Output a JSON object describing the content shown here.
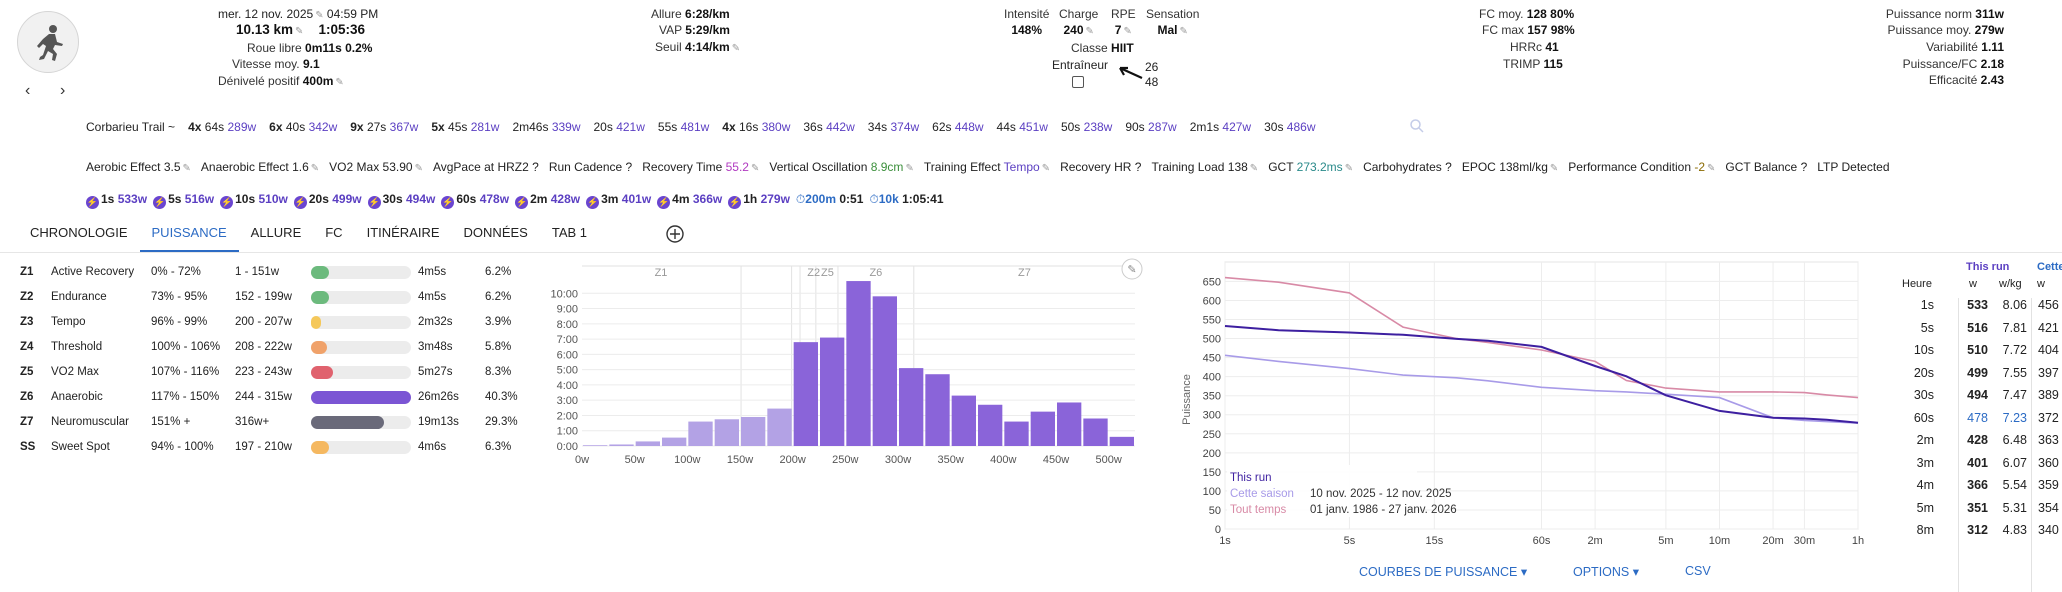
{
  "header": {
    "date": "mer. 12 nov. 2025",
    "time": "04:59 PM",
    "distance": "10.13 km",
    "duration": "1:05:36",
    "roue_libre_label": "Roue libre",
    "roue_libre": "0m11s 0.2%",
    "vitesse_label": "Vitesse moy.",
    "vitesse": "9.1",
    "denivele_label": "Dénivelé positif",
    "denivele": "400m",
    "allure_label": "Allure",
    "allure": "6:28/km",
    "vap_label": "VAP",
    "vap": "5:29/km",
    "seuil_label": "Seuil",
    "seuil": "4:14/km",
    "intensite_label": "Intensité",
    "intensite": "148%",
    "charge_label": "Charge",
    "charge": "240",
    "rpe_label": "RPE",
    "rpe": "7",
    "sensation_label": "Sensation",
    "sensation": "Mal",
    "classe_label": "Classe",
    "classe": "HIIT",
    "entraineur_label": "Entraîneur",
    "arrow_top": "26",
    "arrow_bottom": "48",
    "fcmoy_label": "FC moy.",
    "fcmoy": "128 80%",
    "fcmax_label": "FC max",
    "fcmax": "157 98%",
    "hrrc_label": "HRRc",
    "hrrc": "41",
    "trimp_label": "TRIMP",
    "trimp": "115",
    "pnorm_label": "Puissance norm",
    "pnorm": "311w",
    "pmoy_label": "Puissance moy.",
    "pmoy": "279w",
    "variab_label": "Variabilité",
    "variab": "1.11",
    "pfc_label": "Puissance/FC",
    "pfc": "2.18",
    "effic_label": "Efficacité",
    "effic": "2.43",
    "nav_prev": "‹",
    "nav_next": "›"
  },
  "intervals": [
    {
      "a": "Corbarieu Trail",
      "b": "~"
    },
    {
      "a": "4x",
      "b": "64s",
      "w": "289w"
    },
    {
      "a": "6x",
      "b": "40s",
      "w": "342w"
    },
    {
      "a": "9x",
      "b": "27s",
      "w": "367w"
    },
    {
      "a": "5x",
      "b": "45s",
      "w": "281w"
    },
    {
      "a": "",
      "b": "2m46s",
      "w": "339w"
    },
    {
      "a": "",
      "b": "20s",
      "w": "421w"
    },
    {
      "a": "",
      "b": "55s",
      "w": "481w"
    },
    {
      "a": "4x",
      "b": "16s",
      "w": "380w"
    },
    {
      "a": "",
      "b": "36s",
      "w": "442w"
    },
    {
      "a": "",
      "b": "34s",
      "w": "374w"
    },
    {
      "a": "",
      "b": "62s",
      "w": "448w"
    },
    {
      "a": "",
      "b": "44s",
      "w": "451w"
    },
    {
      "a": "",
      "b": "50s",
      "w": "238w"
    },
    {
      "a": "",
      "b": "90s",
      "w": "287w"
    },
    {
      "a": "",
      "b": "2m1s",
      "w": "427w"
    },
    {
      "a": "",
      "b": "30s",
      "w": "486w"
    }
  ],
  "metrics": [
    {
      "l": "Aerobic Effect",
      "v": "3.5"
    },
    {
      "l": "Anaerobic Effect",
      "v": "1.6"
    },
    {
      "l": "VO2 Max",
      "v": "53.90"
    },
    {
      "l": "AvgPace at HRZ2",
      "v": "?"
    },
    {
      "l": "Run Cadence",
      "v": "?"
    },
    {
      "l": "Recovery Time",
      "v": "55.2"
    },
    {
      "l": "Vertical Oscillation",
      "v": "8.9cm"
    },
    {
      "l": "Training Effect",
      "v": "Tempo"
    },
    {
      "l": "Recovery HR",
      "v": "?"
    },
    {
      "l": "Training Load",
      "v": "138"
    },
    {
      "l": "GCT",
      "v": "273.2ms"
    },
    {
      "l": "Carbohydrates",
      "v": "?"
    },
    {
      "l": "EPOC",
      "v": "138ml/kg"
    },
    {
      "l": "Performance Condition",
      "v": "-2"
    },
    {
      "l": "GCT Balance",
      "v": "?"
    },
    {
      "l": "LTP Detected",
      "v": ""
    }
  ],
  "bests": [
    {
      "d": "1s",
      "w": "533w"
    },
    {
      "d": "5s",
      "w": "516w"
    },
    {
      "d": "10s",
      "w": "510w"
    },
    {
      "d": "20s",
      "w": "499w"
    },
    {
      "d": "30s",
      "w": "494w"
    },
    {
      "d": "60s",
      "w": "478w"
    },
    {
      "d": "2m",
      "w": "428w"
    },
    {
      "d": "3m",
      "w": "401w"
    },
    {
      "d": "4m",
      "w": "366w"
    },
    {
      "d": "1h",
      "w": "279w"
    }
  ],
  "bests_time": [
    {
      "d": "200m",
      "t": "0:51"
    },
    {
      "d": "10k",
      "t": "1:05:41"
    }
  ],
  "tabs": [
    "CHRONOLOGIE",
    "PUISSANCE",
    "ALLURE",
    "FC",
    "ITINÉRAIRE",
    "DONNÉES",
    "TAB 1"
  ],
  "zones": [
    {
      "z": "Z1",
      "name": "Active Recovery",
      "pct": "0% - 72%",
      "w": "1 - 151w",
      "time": "4m5s",
      "share": "6.2%",
      "frac": 0.18,
      "color": "#6cba7d"
    },
    {
      "z": "Z2",
      "name": "Endurance",
      "pct": "73% - 95%",
      "w": "152 - 199w",
      "time": "4m5s",
      "share": "6.2%",
      "frac": 0.18,
      "color": "#6cba7d"
    },
    {
      "z": "Z3",
      "name": "Tempo",
      "pct": "96% - 99%",
      "w": "200 - 207w",
      "time": "2m32s",
      "share": "3.9%",
      "frac": 0.1,
      "color": "#f5c85a"
    },
    {
      "z": "Z4",
      "name": "Threshold",
      "pct": "100% - 106%",
      "w": "208 - 222w",
      "time": "3m48s",
      "share": "5.8%",
      "frac": 0.16,
      "color": "#f0a26a"
    },
    {
      "z": "Z5",
      "name": "VO2 Max",
      "pct": "107% - 116%",
      "w": "223 - 243w",
      "time": "5m27s",
      "share": "8.3%",
      "frac": 0.22,
      "color": "#e0626e"
    },
    {
      "z": "Z6",
      "name": "Anaerobic",
      "pct": "117% - 150%",
      "w": "244 - 315w",
      "time": "26m26s",
      "share": "40.3%",
      "frac": 1.0,
      "color": "#7b55d4"
    },
    {
      "z": "Z7",
      "name": "Neuromuscular",
      "pct": "151% +",
      "w": "316w+",
      "time": "19m13s",
      "share": "29.3%",
      "frac": 0.73,
      "color": "#6a6a7a"
    },
    {
      "z": "SS",
      "name": "Sweet Spot",
      "pct": "94% - 100%",
      "w": "197 - 210w",
      "time": "4m6s",
      "share": "6.3%",
      "frac": 0.18,
      "color": "#f5b860"
    }
  ],
  "chart_data": [
    {
      "type": "bar",
      "title": "",
      "zone_labels": [
        "Z1",
        "Z2",
        "Z5",
        "Z6",
        "Z7"
      ],
      "x": [
        0,
        25,
        50,
        75,
        100,
        125,
        150,
        175,
        200,
        225,
        250,
        275,
        300,
        325,
        350,
        375,
        400,
        425,
        450,
        475,
        500
      ],
      "values": [
        0.05,
        0.1,
        0.3,
        0.55,
        1.6,
        1.75,
        1.9,
        2.45,
        6.8,
        7.1,
        10.8,
        9.8,
        5.1,
        4.7,
        3.3,
        2.7,
        1.6,
        2.25,
        2.85,
        1.8,
        0.6
      ],
      "xticks": [
        "0w",
        "50w",
        "100w",
        "150w",
        "200w",
        "250w",
        "300w",
        "350w",
        "400w",
        "450w",
        "500w"
      ],
      "yticks": [
        "0:00",
        "1:00",
        "2:00",
        "3:00",
        "4:00",
        "5:00",
        "6:00",
        "7:00",
        "8:00",
        "9:00",
        "10:00"
      ],
      "ylim": [
        0,
        11
      ]
    },
    {
      "type": "line",
      "ylabel": "Puissance",
      "xticks": [
        "1s",
        "5s",
        "15s",
        "60s",
        "2m",
        "5m",
        "10m",
        "20m",
        "30m",
        "1h"
      ],
      "yticks": [
        "0",
        "50",
        "100",
        "150",
        "200",
        "250",
        "300",
        "350",
        "400",
        "450",
        "500",
        "550",
        "600",
        "650"
      ],
      "ylim": [
        0,
        680
      ],
      "series": [
        {
          "name": "This run",
          "color": "#3d1fa0",
          "x": [
            1,
            2,
            5,
            10,
            20,
            30,
            60,
            120,
            180,
            300,
            600,
            1200,
            1800,
            2400,
            3600
          ],
          "values": [
            533,
            522,
            516,
            510,
            499,
            494,
            478,
            428,
            401,
            351,
            310,
            292,
            290,
            287,
            279
          ]
        },
        {
          "name": "Cette saison",
          "color": "#a89be8",
          "x": [
            1,
            2,
            5,
            10,
            20,
            30,
            60,
            120,
            180,
            300,
            600,
            1200,
            1800,
            2400,
            3600
          ],
          "values": [
            456,
            440,
            421,
            404,
            397,
            389,
            372,
            363,
            360,
            354,
            345,
            292,
            285,
            282,
            278
          ]
        },
        {
          "name": "Tout temps",
          "color": "#d88aa6",
          "x": [
            1,
            2,
            5,
            10,
            20,
            30,
            60,
            120,
            180,
            300,
            600,
            1200,
            1800,
            2400,
            3600
          ],
          "values": [
            660,
            648,
            620,
            530,
            500,
            490,
            470,
            440,
            390,
            370,
            360,
            360,
            358,
            352,
            345
          ]
        }
      ]
    }
  ],
  "legend": {
    "season_range": "10 nov. 2025  - 12 nov. 2025",
    "all_range": "01 janv. 1986 - 27 janv. 2026"
  },
  "bottom_links": {
    "curves": "COURBES DE PUISSANCE",
    "options": "OPTIONS",
    "csv": "CSV"
  },
  "table": {
    "heure": "Heure",
    "this_run": "This run",
    "cette": "Cette",
    "w": "w",
    "wkg": "w/kg",
    "rows": [
      {
        "t": "1s",
        "w": "533",
        "wkg": "8.06",
        "s": "456"
      },
      {
        "t": "5s",
        "w": "516",
        "wkg": "7.81",
        "s": "421"
      },
      {
        "t": "10s",
        "w": "510",
        "wkg": "7.72",
        "s": "404"
      },
      {
        "t": "20s",
        "w": "499",
        "wkg": "7.55",
        "s": "397"
      },
      {
        "t": "30s",
        "w": "494",
        "wkg": "7.47",
        "s": "389"
      },
      {
        "t": "60s",
        "w": "478",
        "wkg": "7.23",
        "s": "372"
      },
      {
        "t": "2m",
        "w": "428",
        "wkg": "6.48",
        "s": "363"
      },
      {
        "t": "3m",
        "w": "401",
        "wkg": "6.07",
        "s": "360"
      },
      {
        "t": "4m",
        "w": "366",
        "wkg": "5.54",
        "s": "359"
      },
      {
        "t": "5m",
        "w": "351",
        "wkg": "5.31",
        "s": "354"
      },
      {
        "t": "8m",
        "w": "312",
        "wkg": "4.83",
        "s": "340"
      }
    ]
  }
}
